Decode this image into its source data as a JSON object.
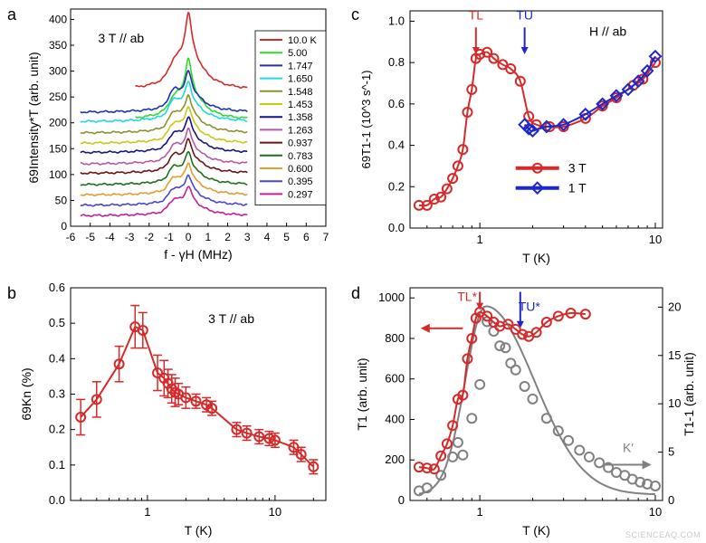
{
  "watermark": "SCIENCEAQ.COM",
  "chart_data": [
    {
      "panel": "a",
      "type": "line",
      "annotation": "3 T // ab",
      "xlabel": "f - γH (MHz)",
      "ylabel": "69Intensity*T (arb. unit)",
      "xlim": [
        -6,
        7
      ],
      "ylim": [
        0,
        420
      ],
      "xticks": [
        -6,
        -5,
        -4,
        -3,
        -2,
        -1,
        0,
        1,
        2,
        3,
        4,
        5,
        6,
        7
      ],
      "yticks": [
        0,
        50,
        100,
        150,
        200,
        250,
        300,
        350,
        400
      ],
      "legend_position": "right",
      "series": [
        {
          "name": "10.0 K",
          "color": "#d42a2a",
          "baseline": 263,
          "amplitude": 150,
          "xrange": [
            -2.7,
            3
          ]
        },
        {
          "name": "5.00",
          "color": "#2fd92f",
          "baseline": 205,
          "amplitude": 118,
          "xrange": [
            -2.7,
            3
          ]
        },
        {
          "name": "1.747",
          "color": "#2030b0",
          "baseline": 220,
          "amplitude": 80,
          "xrange": [
            -5.5,
            3
          ]
        },
        {
          "name": "1.650",
          "color": "#22d6e6",
          "baseline": 202,
          "amplitude": 78,
          "xrange": [
            -5.5,
            3
          ]
        },
        {
          "name": "1.548",
          "color": "#8f8f2f",
          "baseline": 180,
          "amplitude": 74,
          "xrange": [
            -5.5,
            3
          ]
        },
        {
          "name": "1.453",
          "color": "#c8c814",
          "baseline": 160,
          "amplitude": 72,
          "xrange": [
            -5.5,
            3
          ]
        },
        {
          "name": "1.358",
          "color": "#141480",
          "baseline": 142,
          "amplitude": 70,
          "xrange": [
            -5.5,
            3
          ]
        },
        {
          "name": "1.263",
          "color": "#b45aa5",
          "baseline": 120,
          "amplitude": 68,
          "xrange": [
            -5.5,
            3
          ]
        },
        {
          "name": "0.937",
          "color": "#6a1414",
          "baseline": 102,
          "amplitude": 66,
          "xrange": [
            -5.5,
            3
          ]
        },
        {
          "name": "0.783",
          "color": "#1f6e1f",
          "baseline": 80,
          "amplitude": 64,
          "xrange": [
            -5.5,
            3
          ]
        },
        {
          "name": "0.600",
          "color": "#e69b2d",
          "baseline": 60,
          "amplitude": 62,
          "xrange": [
            -5.5,
            3
          ]
        },
        {
          "name": "0.395",
          "color": "#4a46c8",
          "baseline": 40,
          "amplitude": 60,
          "xrange": [
            -5.5,
            3
          ]
        },
        {
          "name": "0.297",
          "color": "#c81e96",
          "baseline": 20,
          "amplitude": 58,
          "xrange": [
            -5.5,
            3
          ]
        }
      ]
    },
    {
      "panel": "b",
      "type": "scatter",
      "annotation": "3 T // ab",
      "xlabel": "T (K)",
      "ylabel": "69Kn (%)",
      "xscale": "log",
      "xlim": [
        0.25,
        25
      ],
      "ylim": [
        0,
        0.6
      ],
      "xticks": [
        1,
        10
      ],
      "yticks": [
        0,
        0.1,
        0.2,
        0.3,
        0.4,
        0.5,
        0.6
      ],
      "color": "#d42a2a",
      "series": [
        {
          "name": "",
          "x": [
            0.3,
            0.4,
            0.6,
            0.8,
            0.92,
            1.2,
            1.35,
            1.45,
            1.55,
            1.65,
            1.75,
            2.0,
            2.4,
            2.9,
            3.2,
            5.0,
            6.0,
            7.5,
            9.0,
            10.0,
            14.0,
            16.0,
            20.0
          ],
          "y": [
            0.235,
            0.285,
            0.385,
            0.49,
            0.48,
            0.36,
            0.345,
            0.33,
            0.315,
            0.305,
            0.3,
            0.29,
            0.28,
            0.27,
            0.26,
            0.2,
            0.19,
            0.18,
            0.175,
            0.17,
            0.15,
            0.13,
            0.095
          ],
          "err": [
            0.05,
            0.05,
            0.05,
            0.06,
            0.05,
            0.05,
            0.05,
            0.04,
            0.04,
            0.04,
            0.03,
            0.03,
            0.02,
            0.02,
            0.02,
            0.02,
            0.02,
            0.02,
            0.02,
            0.02,
            0.02,
            0.02,
            0.02
          ]
        }
      ]
    },
    {
      "panel": "c",
      "type": "line",
      "annotation": "H // ab",
      "xlabel": "T (K)",
      "ylabel": "69T1-1 (10^3 s^-1)",
      "xscale": "log",
      "xlim": [
        0.4,
        11
      ],
      "ylim": [
        0,
        1.05
      ],
      "xticks": [
        1,
        10
      ],
      "yticks": [
        0,
        0.2,
        0.4,
        0.6,
        0.8,
        1.0
      ],
      "markers": [
        {
          "label": "TL",
          "x": 0.95,
          "color": "#d42a2a"
        },
        {
          "label": "TU",
          "x": 1.8,
          "color": "#1e28c8"
        }
      ],
      "legend_position": "bottom-right",
      "series": [
        {
          "name": "3 T",
          "color": "#d42a2a",
          "marker": "circle",
          "x": [
            0.45,
            0.5,
            0.55,
            0.6,
            0.65,
            0.7,
            0.75,
            0.8,
            0.85,
            0.9,
            0.95,
            1.0,
            1.1,
            1.2,
            1.35,
            1.5,
            1.7,
            1.9,
            2.1,
            2.5,
            3.0,
            4.0,
            5.0,
            6.0,
            7.5,
            8.5,
            10.0
          ],
          "y": [
            0.11,
            0.11,
            0.14,
            0.15,
            0.19,
            0.24,
            0.3,
            0.38,
            0.56,
            0.67,
            0.82,
            0.84,
            0.85,
            0.82,
            0.79,
            0.77,
            0.71,
            0.54,
            0.5,
            0.49,
            0.49,
            0.53,
            0.59,
            0.63,
            0.69,
            0.72,
            0.8
          ]
        },
        {
          "name": "1 T",
          "color": "#1e28c8",
          "marker": "diamond",
          "x": [
            1.8,
            1.9,
            2.0,
            2.4,
            3.0,
            4.0,
            5.0,
            6.0,
            7.0,
            8.0,
            9.0,
            10.0
          ],
          "y": [
            0.5,
            0.48,
            0.47,
            0.49,
            0.5,
            0.55,
            0.6,
            0.64,
            0.67,
            0.71,
            0.76,
            0.83
          ]
        }
      ]
    },
    {
      "panel": "d",
      "type": "line",
      "xlabel": "T (K)",
      "ylabel_left": "T1 (arb. unit)",
      "ylabel_right": "T1-1 (arb. unit)",
      "xscale": "log",
      "xlim": [
        0.4,
        11
      ],
      "ylim_left": [
        0,
        1050
      ],
      "ylim_right": [
        0,
        22
      ],
      "xticks": [
        1,
        10
      ],
      "yticks_left": [
        0,
        200,
        400,
        600,
        800,
        1000
      ],
      "yticks_right": [
        0,
        5,
        10,
        15,
        20
      ],
      "markers": [
        {
          "label": "TL*",
          "x": 1.0,
          "color": "#d42a2a"
        },
        {
          "label": "TU*",
          "x": 1.7,
          "color": "#1e28c8"
        }
      ],
      "arrow_label": "K′",
      "series": [
        {
          "name": "",
          "axis": "left",
          "color": "#d42a2a",
          "marker": "circle",
          "x": [
            0.45,
            0.5,
            0.55,
            0.6,
            0.65,
            0.7,
            0.75,
            0.8,
            0.85,
            0.9,
            0.95,
            1.0,
            1.1,
            1.2,
            1.3,
            1.45,
            1.6,
            1.75,
            1.9,
            2.1,
            2.4,
            2.8,
            3.3,
            4.0
          ],
          "y": [
            165,
            160,
            155,
            220,
            280,
            370,
            500,
            520,
            700,
            800,
            900,
            930,
            910,
            880,
            860,
            870,
            845,
            820,
            810,
            830,
            880,
            910,
            925,
            920
          ]
        },
        {
          "name": "",
          "axis": "right",
          "color": "#808080",
          "marker": "circle",
          "x": [
            0.45,
            0.5,
            0.6,
            0.7,
            0.75,
            0.8,
            0.9,
            1.0,
            1.1,
            1.2,
            1.3,
            1.4,
            1.5,
            1.6,
            1.8,
            2.0,
            2.4,
            2.8,
            3.2,
            3.7,
            4.2,
            4.8,
            5.4,
            6.0,
            6.7,
            7.4,
            8.2,
            9.0,
            10.0
          ],
          "y": [
            1.0,
            1.3,
            2.6,
            4.5,
            6.0,
            4.7,
            8.5,
            12.0,
            18.5,
            17.5,
            16.0,
            15.8,
            14.2,
            13.5,
            11.8,
            10.5,
            8.5,
            7.2,
            6.2,
            5.2,
            4.5,
            3.9,
            3.4,
            2.9,
            2.6,
            2.2,
            1.9,
            1.7,
            1.5
          ]
        }
      ]
    }
  ],
  "panels": [
    {
      "letter": "a"
    },
    {
      "letter": "b"
    },
    {
      "letter": "c"
    },
    {
      "letter": "d"
    }
  ]
}
